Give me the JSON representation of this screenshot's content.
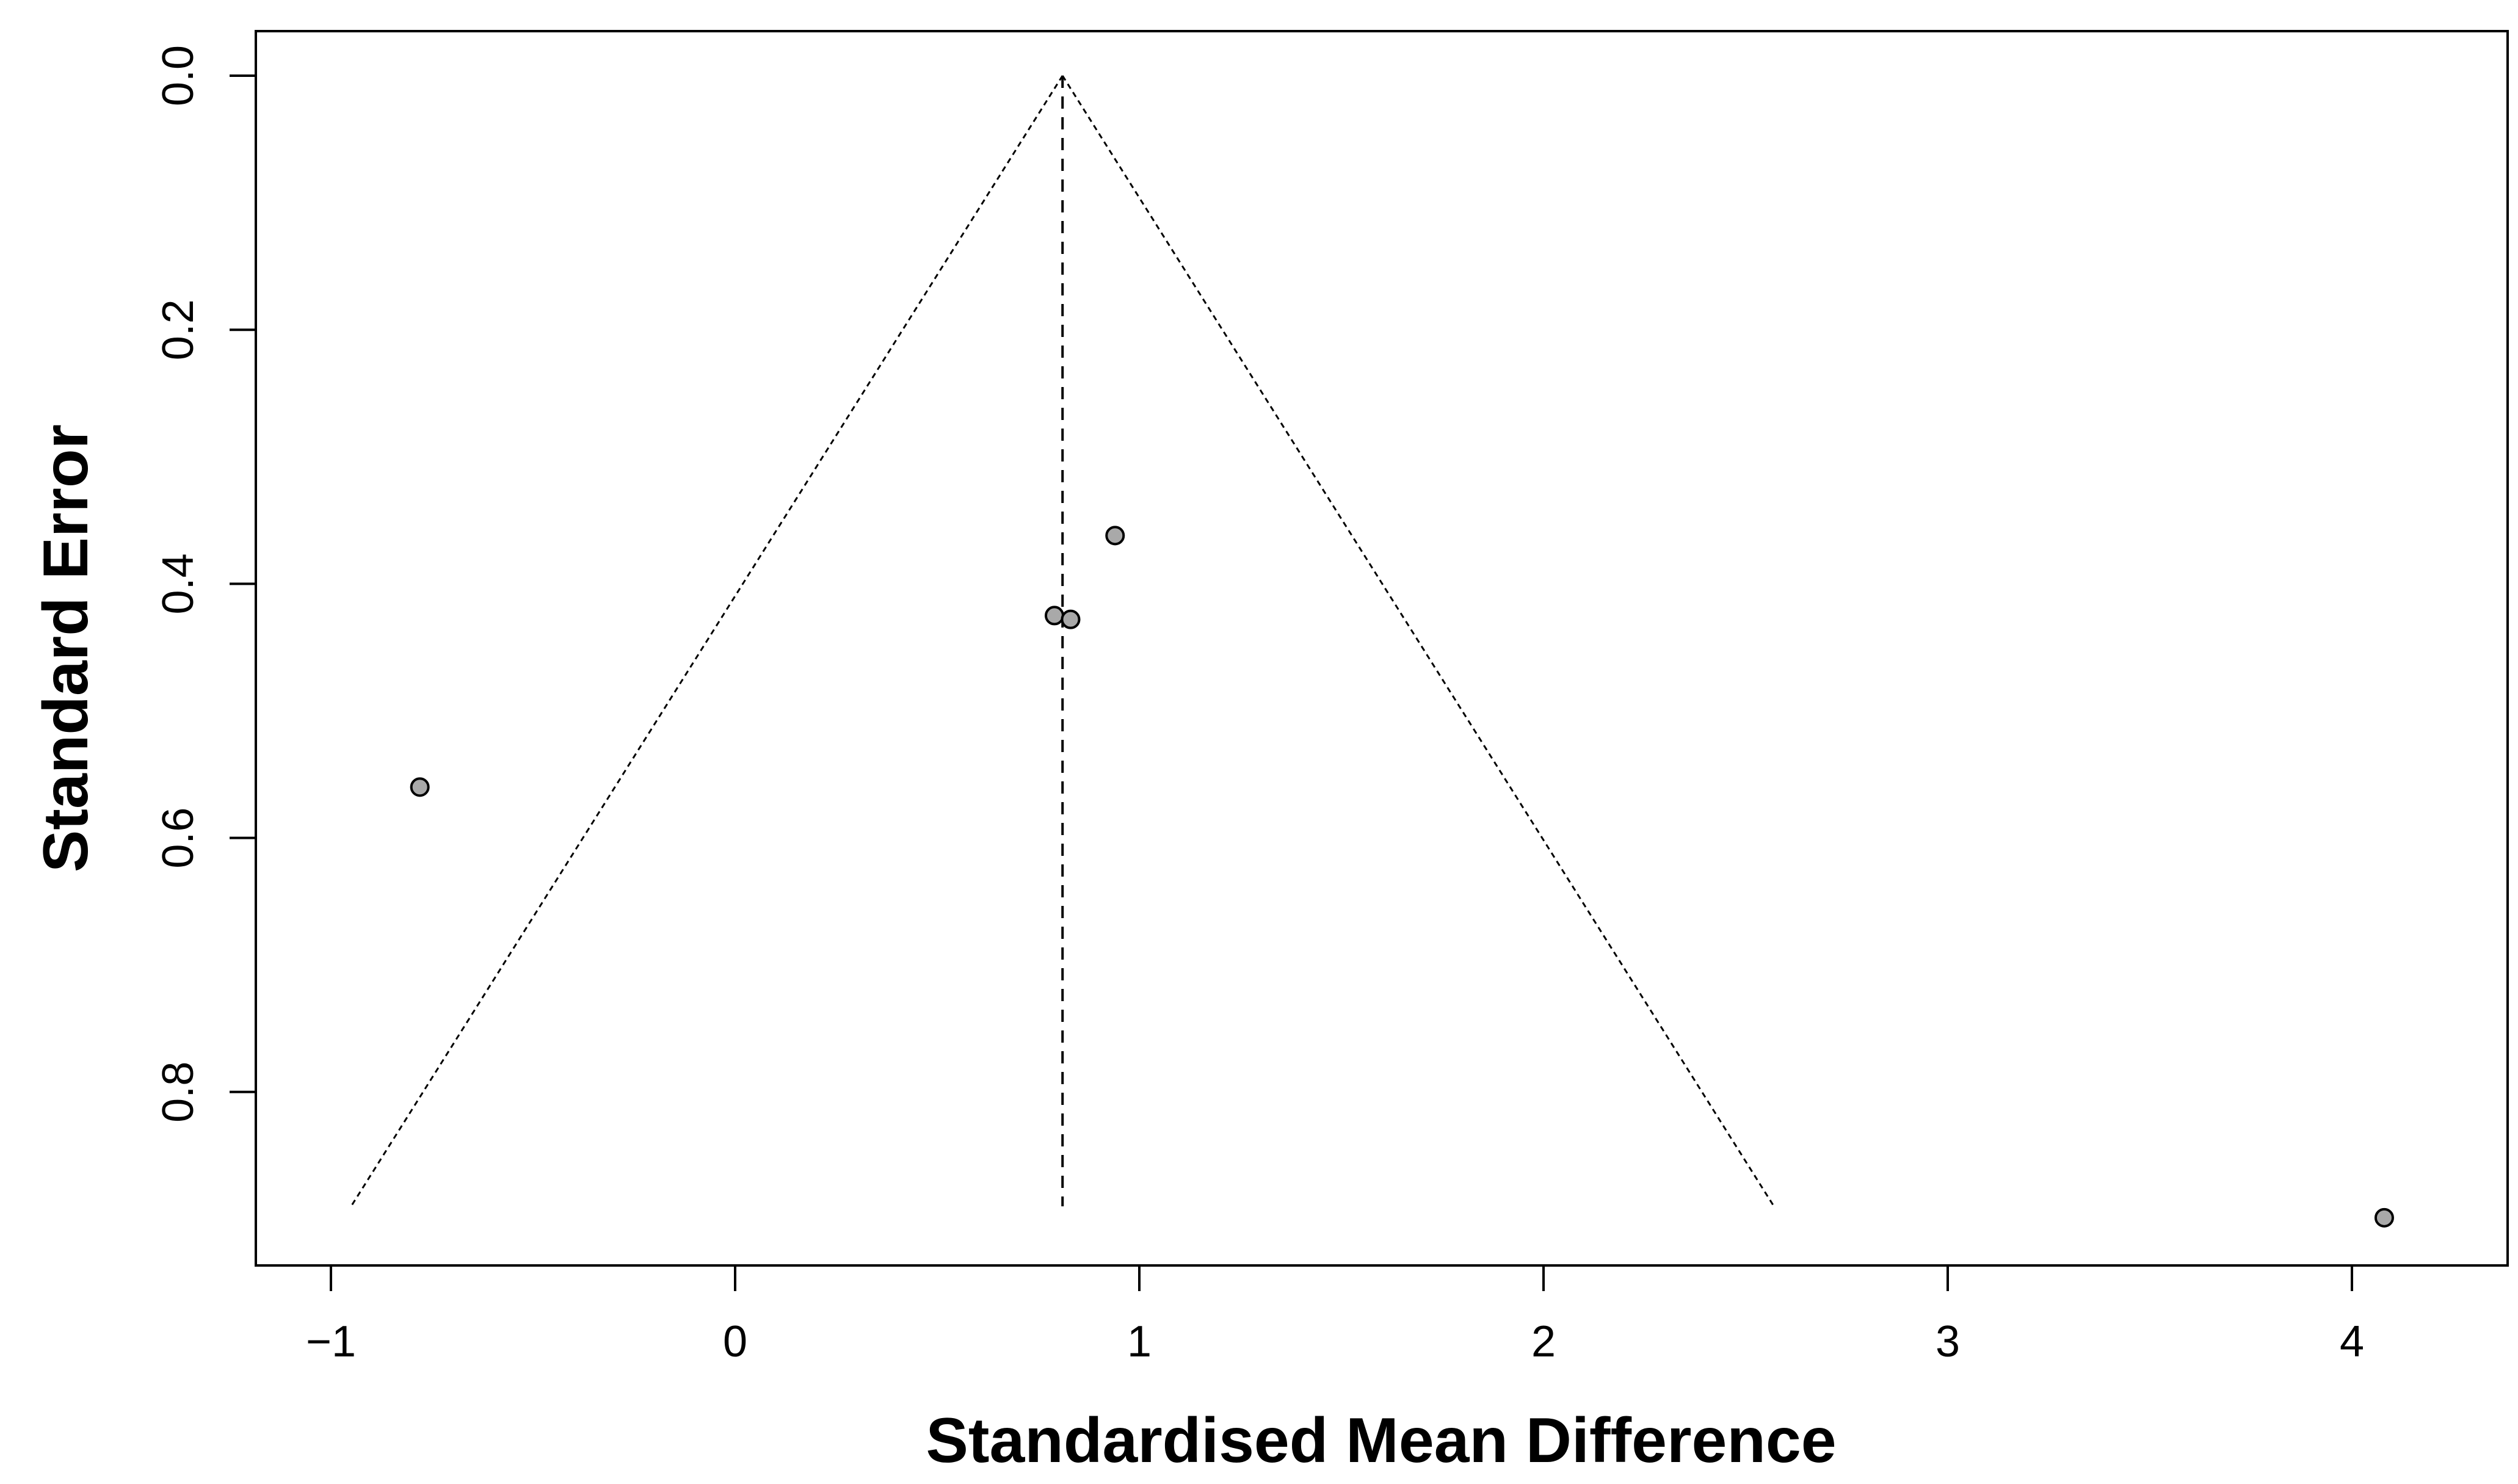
{
  "chart_data": {
    "type": "scatter",
    "subtype": "funnel-plot",
    "title": "",
    "xlabel": "Standardised Mean Difference",
    "ylabel": "Standard Error",
    "xlim": [
      -1.0,
      4.2
    ],
    "ylim": [
      0.0,
      0.9
    ],
    "y_reversed": true,
    "x_ticks": [
      -1,
      0,
      1,
      2,
      3,
      4
    ],
    "x_tick_labels": [
      "−1",
      "0",
      "1",
      "2",
      "3",
      "4"
    ],
    "y_ticks": [
      0.0,
      0.2,
      0.4,
      0.6,
      0.8
    ],
    "y_tick_labels": [
      "0.0",
      "0.2",
      "0.4",
      "0.6",
      "0.8"
    ],
    "grid": false,
    "legend": "none",
    "pooled_estimate": 0.81,
    "funnel_bottom_se": 0.89,
    "funnel_bottom_x": [
      -0.95,
      2.57
    ],
    "points": [
      {
        "x": -0.78,
        "y": 0.56
      },
      {
        "x": 0.79,
        "y": 0.425
      },
      {
        "x": 0.83,
        "y": 0.428
      },
      {
        "x": 0.94,
        "y": 0.362
      },
      {
        "x": 4.08,
        "y": 0.899
      }
    ],
    "colors": {
      "point_fill": "#a9a9a9",
      "line": "#000000",
      "background": "#ffffff"
    }
  }
}
